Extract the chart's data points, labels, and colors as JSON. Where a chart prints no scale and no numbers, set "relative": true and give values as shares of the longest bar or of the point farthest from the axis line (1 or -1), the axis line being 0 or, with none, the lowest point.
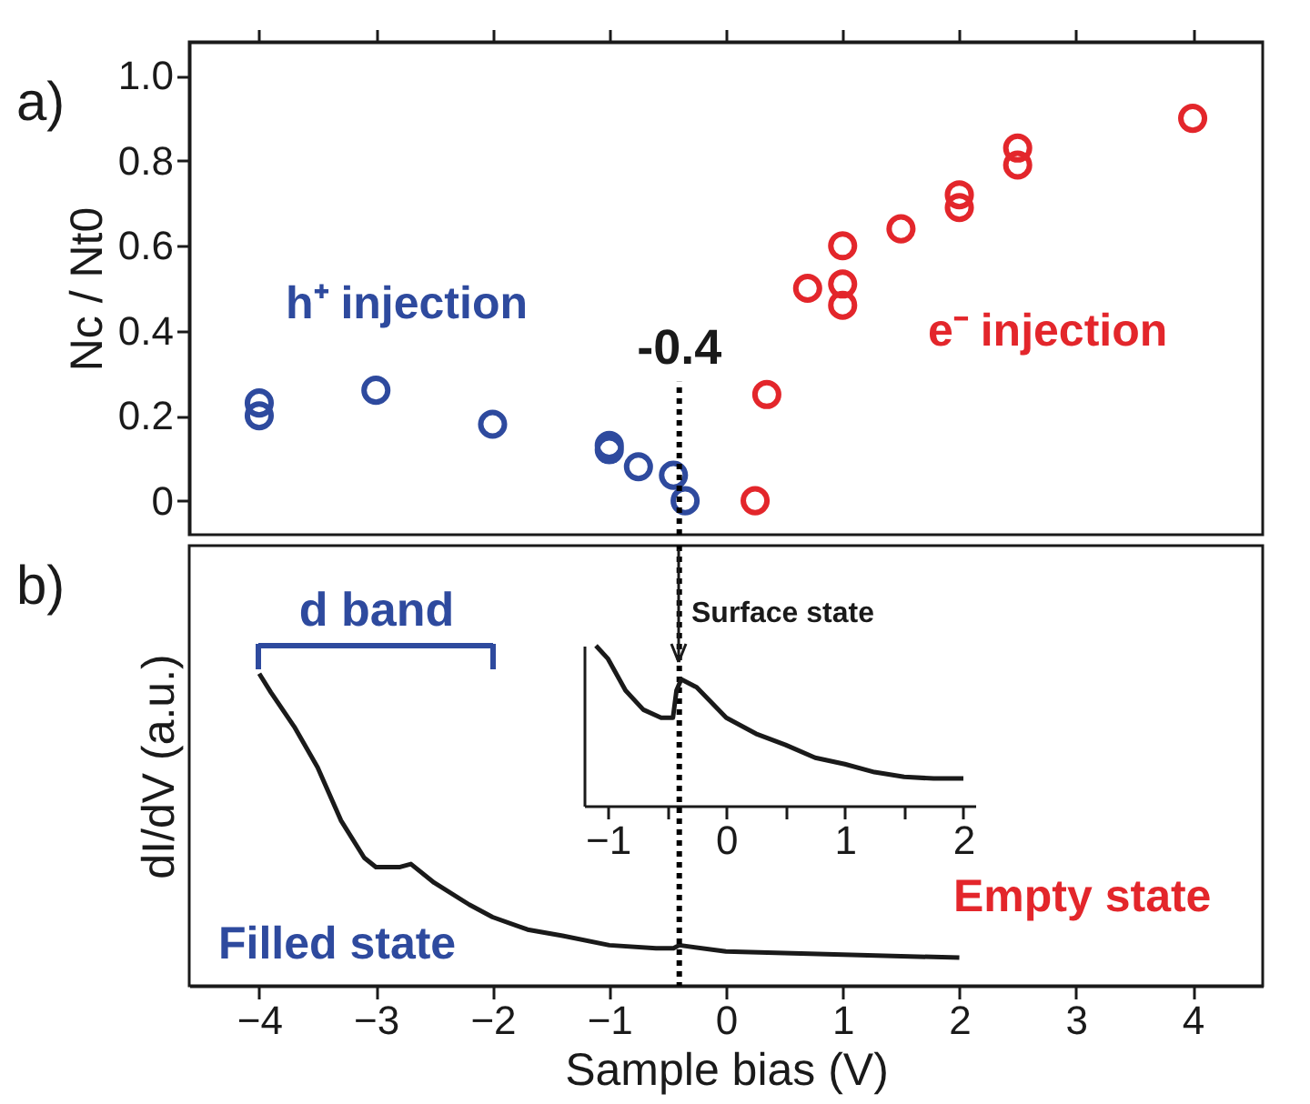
{
  "chart_data": [
    {
      "type": "scatter",
      "ylabel": "Nc / Nt0",
      "xlim": [
        -4.6,
        4.6
      ],
      "xticks": [
        -4,
        -3,
        -2,
        -1,
        0,
        1,
        2,
        3,
        4
      ],
      "ylim": [
        -0.08,
        1.08
      ],
      "yticks": [
        0,
        0.2,
        0.4,
        0.6,
        0.8,
        {
          "value": 1,
          "label": "1.0"
        }
      ],
      "tick_labels": "y",
      "marker": "circle",
      "series": [
        {
          "color": "#2e4a9e",
          "x": [
            -4,
            -4,
            -3,
            -2,
            -1,
            -1,
            -0.75,
            -0.45,
            -0.35
          ],
          "values": [
            0.23,
            0.2,
            0.26,
            0.18,
            0.13,
            0.12,
            0.08,
            0.06,
            0.0
          ]
        },
        {
          "color": "#e3262b",
          "x": [
            0.25,
            0.35,
            0.7,
            1,
            1,
            1,
            1.5,
            2,
            2,
            2.5,
            2.5,
            4
          ],
          "values": [
            0.0,
            0.25,
            0.5,
            0.6,
            0.51,
            0.46,
            0.64,
            0.72,
            0.69,
            0.83,
            0.79,
            0.9
          ]
        }
      ],
      "ref_lines": [
        {
          "axis": "x",
          "value": -0.4,
          "line_style": "dotted",
          "color": "#000000"
        }
      ],
      "annotations": [
        "a)",
        "h⁺ injection",
        "e⁻ injection",
        {
          "text": "-0.4",
          "x": -0.4,
          "y": 0.28
        }
      ]
    },
    {
      "type": "line",
      "relative": true,
      "xlabel": "Sample bias (V)",
      "ylabel": "dI/dV (a.u.)",
      "xlim": [
        -4.6,
        4.6
      ],
      "xticks": [
        -4,
        -3,
        -2,
        -1,
        0,
        1,
        2,
        3,
        4
      ],
      "tick_labels": "x",
      "series": [
        {
          "color": "#1a1a1a",
          "x": [
            -4,
            -3.9,
            -3.7,
            -3.5,
            -3.3,
            -3.1,
            -3,
            -2.8,
            -2.7,
            -2.5,
            -2.2,
            -2,
            -1.7,
            -1.4,
            -1,
            -0.6,
            -0.45,
            -0.4,
            0,
            1,
            2
          ],
          "values": [
            1,
            0.94,
            0.83,
            0.7,
            0.53,
            0.41,
            0.38,
            0.38,
            0.39,
            0.33,
            0.26,
            0.22,
            0.18,
            0.16,
            0.13,
            0.12,
            0.12,
            0.13,
            0.11,
            0.1,
            0.09
          ]
        }
      ],
      "ref_lines": [
        {
          "axis": "x",
          "value": -0.4,
          "line_style": "dotted",
          "color": "#000000"
        }
      ],
      "annotations": [
        "b)",
        "Filled state",
        "Empty state",
        "d band"
      ]
    },
    {
      "type": "line",
      "relative": true,
      "xlim": [
        -1.2,
        2.1
      ],
      "xticks": [
        -1,
        {
          "value": -0.5,
          "label": null
        },
        0,
        {
          "value": 0.5,
          "label": null
        },
        1,
        {
          "value": 1.5,
          "label": null
        },
        2
      ],
      "tick_labels": "x",
      "series": [
        {
          "color": "#1a1a1a",
          "x": [
            -1.1,
            -1,
            -0.85,
            -0.7,
            -0.55,
            -0.45,
            -0.42,
            -0.38,
            -0.25,
            0,
            0.25,
            0.5,
            0.75,
            1,
            1.25,
            1.5,
            1.75,
            2
          ],
          "values": [
            1,
            0.92,
            0.72,
            0.6,
            0.55,
            0.55,
            0.72,
            0.79,
            0.74,
            0.55,
            0.45,
            0.38,
            0.3,
            0.26,
            0.21,
            0.18,
            0.17,
            0.17
          ]
        }
      ],
      "annotations": [
        "Surface state"
      ]
    }
  ]
}
